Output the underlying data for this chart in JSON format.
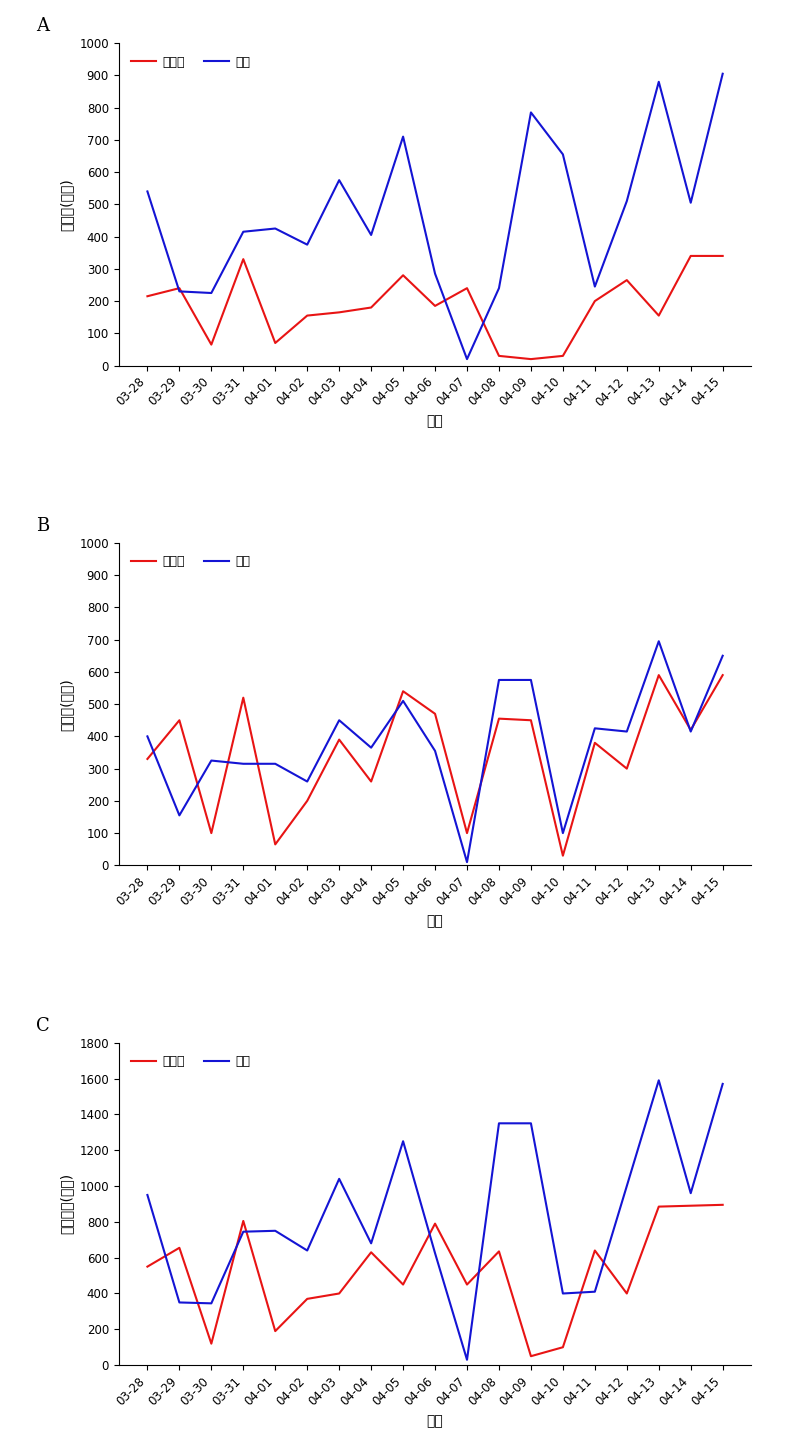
{
  "dates": [
    "03-28",
    "03-29",
    "03-30",
    "03-31",
    "04-01",
    "04-02",
    "04-03",
    "04-04",
    "04-05",
    "04-06",
    "04-07",
    "04-08",
    "04-09",
    "04-10",
    "04-11",
    "04-12",
    "04-13",
    "04-14",
    "04-15"
  ],
  "chart_A": {
    "red": [
      215,
      240,
      65,
      330,
      70,
      155,
      165,
      180,
      280,
      185,
      240,
      30,
      20,
      30,
      200,
      265,
      155,
      340,
      340
    ],
    "blue": [
      540,
      230,
      225,
      415,
      425,
      375,
      575,
      405,
      710,
      285,
      20,
      240,
      785,
      655,
      245,
      510,
      880,
      505,
      905
    ],
    "ylabel": "입소수(마리)",
    "ylim": [
      0,
      1000
    ],
    "yticks": [
      0,
      100,
      200,
      300,
      400,
      500,
      600,
      700,
      800,
      900,
      1000
    ]
  },
  "chart_B": {
    "red": [
      330,
      450,
      100,
      520,
      65,
      200,
      390,
      260,
      540,
      470,
      100,
      455,
      450,
      30,
      380,
      300,
      590,
      420,
      590
    ],
    "blue": [
      400,
      155,
      325,
      315,
      315,
      260,
      450,
      365,
      510,
      355,
      10,
      575,
      575,
      100,
      425,
      415,
      695,
      415,
      650
    ],
    "ylabel": "쳙소수(마리)",
    "ylim": [
      0,
      1000
    ],
    "yticks": [
      0,
      100,
      200,
      300,
      400,
      500,
      600,
      700,
      800,
      900,
      1000
    ]
  },
  "chart_C": {
    "red": [
      550,
      655,
      120,
      805,
      190,
      370,
      400,
      630,
      450,
      790,
      450,
      635,
      50,
      100,
      640,
      400,
      885,
      890,
      895
    ],
    "blue": [
      950,
      350,
      345,
      745,
      750,
      640,
      1040,
      680,
      1250,
      625,
      30,
      1350,
      1350,
      400,
      410,
      1000,
      1590,
      960,
      1570
    ],
    "ylabel": "총활동수(마리)",
    "ylim": [
      0,
      1800
    ],
    "yticks": [
      0,
      200,
      400,
      600,
      800,
      1000,
      1200,
      1400,
      1600,
      1800
    ]
  },
  "panel_labels": [
    "A",
    "B",
    "C"
  ],
  "xlabel": "날짜",
  "legend_red": "미공급",
  "legend_blue": "공급",
  "red_color": "#e81414",
  "blue_color": "#1414d4",
  "fig_width": 7.91,
  "fig_height": 14.37
}
